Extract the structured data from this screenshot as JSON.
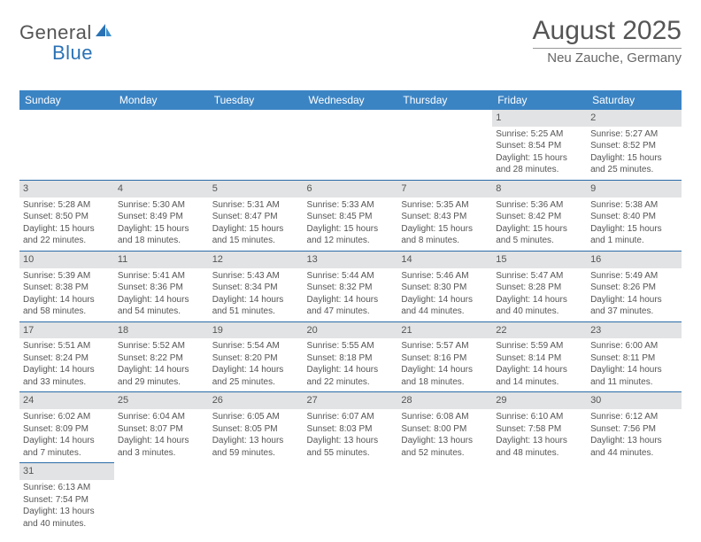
{
  "logo": {
    "text_main": "General",
    "text_blue": "Blue",
    "color_main": "#555555",
    "color_blue": "#2a72b5"
  },
  "title": "August 2025",
  "location": "Neu Zauche, Germany",
  "colors": {
    "header_bg": "#3b84c4",
    "header_fg": "#ffffff",
    "day_num_bg": "#e2e3e4",
    "border": "#2a6ca8",
    "text": "#555555"
  },
  "weekdays": [
    "Sunday",
    "Monday",
    "Tuesday",
    "Wednesday",
    "Thursday",
    "Friday",
    "Saturday"
  ],
  "weeks": [
    [
      null,
      null,
      null,
      null,
      null,
      {
        "n": "1",
        "sunrise": "Sunrise: 5:25 AM",
        "sunset": "Sunset: 8:54 PM",
        "daylight": "Daylight: 15 hours and 28 minutes."
      },
      {
        "n": "2",
        "sunrise": "Sunrise: 5:27 AM",
        "sunset": "Sunset: 8:52 PM",
        "daylight": "Daylight: 15 hours and 25 minutes."
      }
    ],
    [
      {
        "n": "3",
        "sunrise": "Sunrise: 5:28 AM",
        "sunset": "Sunset: 8:50 PM",
        "daylight": "Daylight: 15 hours and 22 minutes."
      },
      {
        "n": "4",
        "sunrise": "Sunrise: 5:30 AM",
        "sunset": "Sunset: 8:49 PM",
        "daylight": "Daylight: 15 hours and 18 minutes."
      },
      {
        "n": "5",
        "sunrise": "Sunrise: 5:31 AM",
        "sunset": "Sunset: 8:47 PM",
        "daylight": "Daylight: 15 hours and 15 minutes."
      },
      {
        "n": "6",
        "sunrise": "Sunrise: 5:33 AM",
        "sunset": "Sunset: 8:45 PM",
        "daylight": "Daylight: 15 hours and 12 minutes."
      },
      {
        "n": "7",
        "sunrise": "Sunrise: 5:35 AM",
        "sunset": "Sunset: 8:43 PM",
        "daylight": "Daylight: 15 hours and 8 minutes."
      },
      {
        "n": "8",
        "sunrise": "Sunrise: 5:36 AM",
        "sunset": "Sunset: 8:42 PM",
        "daylight": "Daylight: 15 hours and 5 minutes."
      },
      {
        "n": "9",
        "sunrise": "Sunrise: 5:38 AM",
        "sunset": "Sunset: 8:40 PM",
        "daylight": "Daylight: 15 hours and 1 minute."
      }
    ],
    [
      {
        "n": "10",
        "sunrise": "Sunrise: 5:39 AM",
        "sunset": "Sunset: 8:38 PM",
        "daylight": "Daylight: 14 hours and 58 minutes."
      },
      {
        "n": "11",
        "sunrise": "Sunrise: 5:41 AM",
        "sunset": "Sunset: 8:36 PM",
        "daylight": "Daylight: 14 hours and 54 minutes."
      },
      {
        "n": "12",
        "sunrise": "Sunrise: 5:43 AM",
        "sunset": "Sunset: 8:34 PM",
        "daylight": "Daylight: 14 hours and 51 minutes."
      },
      {
        "n": "13",
        "sunrise": "Sunrise: 5:44 AM",
        "sunset": "Sunset: 8:32 PM",
        "daylight": "Daylight: 14 hours and 47 minutes."
      },
      {
        "n": "14",
        "sunrise": "Sunrise: 5:46 AM",
        "sunset": "Sunset: 8:30 PM",
        "daylight": "Daylight: 14 hours and 44 minutes."
      },
      {
        "n": "15",
        "sunrise": "Sunrise: 5:47 AM",
        "sunset": "Sunset: 8:28 PM",
        "daylight": "Daylight: 14 hours and 40 minutes."
      },
      {
        "n": "16",
        "sunrise": "Sunrise: 5:49 AM",
        "sunset": "Sunset: 8:26 PM",
        "daylight": "Daylight: 14 hours and 37 minutes."
      }
    ],
    [
      {
        "n": "17",
        "sunrise": "Sunrise: 5:51 AM",
        "sunset": "Sunset: 8:24 PM",
        "daylight": "Daylight: 14 hours and 33 minutes."
      },
      {
        "n": "18",
        "sunrise": "Sunrise: 5:52 AM",
        "sunset": "Sunset: 8:22 PM",
        "daylight": "Daylight: 14 hours and 29 minutes."
      },
      {
        "n": "19",
        "sunrise": "Sunrise: 5:54 AM",
        "sunset": "Sunset: 8:20 PM",
        "daylight": "Daylight: 14 hours and 25 minutes."
      },
      {
        "n": "20",
        "sunrise": "Sunrise: 5:55 AM",
        "sunset": "Sunset: 8:18 PM",
        "daylight": "Daylight: 14 hours and 22 minutes."
      },
      {
        "n": "21",
        "sunrise": "Sunrise: 5:57 AM",
        "sunset": "Sunset: 8:16 PM",
        "daylight": "Daylight: 14 hours and 18 minutes."
      },
      {
        "n": "22",
        "sunrise": "Sunrise: 5:59 AM",
        "sunset": "Sunset: 8:14 PM",
        "daylight": "Daylight: 14 hours and 14 minutes."
      },
      {
        "n": "23",
        "sunrise": "Sunrise: 6:00 AM",
        "sunset": "Sunset: 8:11 PM",
        "daylight": "Daylight: 14 hours and 11 minutes."
      }
    ],
    [
      {
        "n": "24",
        "sunrise": "Sunrise: 6:02 AM",
        "sunset": "Sunset: 8:09 PM",
        "daylight": "Daylight: 14 hours and 7 minutes."
      },
      {
        "n": "25",
        "sunrise": "Sunrise: 6:04 AM",
        "sunset": "Sunset: 8:07 PM",
        "daylight": "Daylight: 14 hours and 3 minutes."
      },
      {
        "n": "26",
        "sunrise": "Sunrise: 6:05 AM",
        "sunset": "Sunset: 8:05 PM",
        "daylight": "Daylight: 13 hours and 59 minutes."
      },
      {
        "n": "27",
        "sunrise": "Sunrise: 6:07 AM",
        "sunset": "Sunset: 8:03 PM",
        "daylight": "Daylight: 13 hours and 55 minutes."
      },
      {
        "n": "28",
        "sunrise": "Sunrise: 6:08 AM",
        "sunset": "Sunset: 8:00 PM",
        "daylight": "Daylight: 13 hours and 52 minutes."
      },
      {
        "n": "29",
        "sunrise": "Sunrise: 6:10 AM",
        "sunset": "Sunset: 7:58 PM",
        "daylight": "Daylight: 13 hours and 48 minutes."
      },
      {
        "n": "30",
        "sunrise": "Sunrise: 6:12 AM",
        "sunset": "Sunset: 7:56 PM",
        "daylight": "Daylight: 13 hours and 44 minutes."
      }
    ],
    [
      {
        "n": "31",
        "sunrise": "Sunrise: 6:13 AM",
        "sunset": "Sunset: 7:54 PM",
        "daylight": "Daylight: 13 hours and 40 minutes."
      },
      null,
      null,
      null,
      null,
      null,
      null
    ]
  ]
}
